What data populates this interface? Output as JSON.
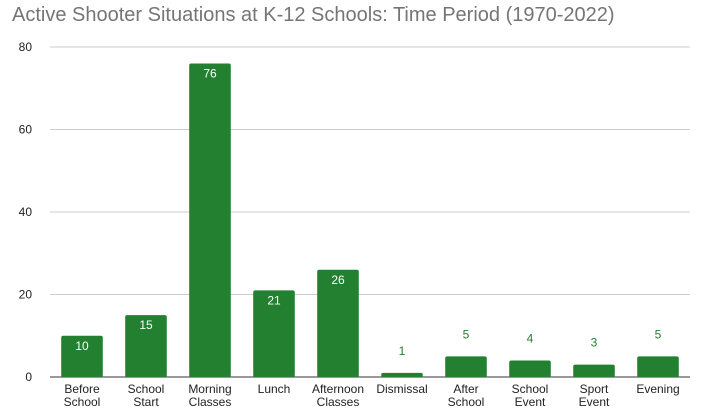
{
  "chart_data": {
    "type": "bar",
    "title": "Active Shooter Situations at K-12 Schools: Time Period (1970-2022)",
    "xlabel": "",
    "ylabel": "",
    "ylim": [
      0,
      80
    ],
    "yticks": [
      0,
      20,
      40,
      60,
      80
    ],
    "grid": true,
    "legend": "none",
    "bar_color": "#228030",
    "categories": [
      [
        "Before",
        "School"
      ],
      [
        "School",
        "Start"
      ],
      [
        "Morning",
        "Classes"
      ],
      [
        "Lunch"
      ],
      [
        "Afternoon",
        "Classes"
      ],
      [
        "Dismissal"
      ],
      [
        "After",
        "School"
      ],
      [
        "School",
        "Event"
      ],
      [
        "Sport",
        "Event"
      ],
      [
        "Evening"
      ]
    ],
    "values": [
      10,
      15,
      76,
      21,
      26,
      1,
      5,
      4,
      3,
      5
    ]
  }
}
